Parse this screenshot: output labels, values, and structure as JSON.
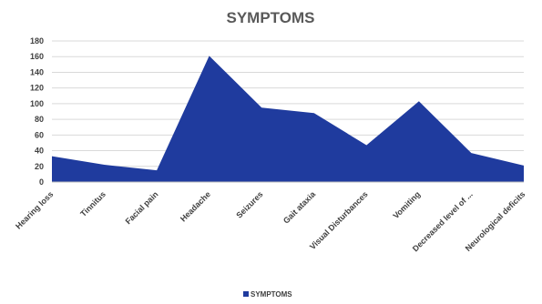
{
  "chart_data": {
    "type": "area",
    "title": "SYMPTOMS",
    "categories": [
      "Hearing loss",
      "Tinnitus",
      "Facial pain",
      "Headache",
      "Seizures",
      "Gait ataxia",
      "Visual Disturbances",
      "Vomiting",
      "Decreased level of ...",
      "Neurological deficits"
    ],
    "series": [
      {
        "name": "SYMPTOMS",
        "values": [
          33,
          22,
          15,
          161,
          95,
          88,
          47,
          103,
          37,
          21
        ]
      }
    ],
    "yticks": [
      "0",
      "20",
      "40",
      "60",
      "80",
      "100",
      "120",
      "140",
      "160",
      "180"
    ],
    "ylim": [
      0,
      180
    ],
    "grid": true,
    "legend": "bottom",
    "color": "#1f3b9e"
  }
}
